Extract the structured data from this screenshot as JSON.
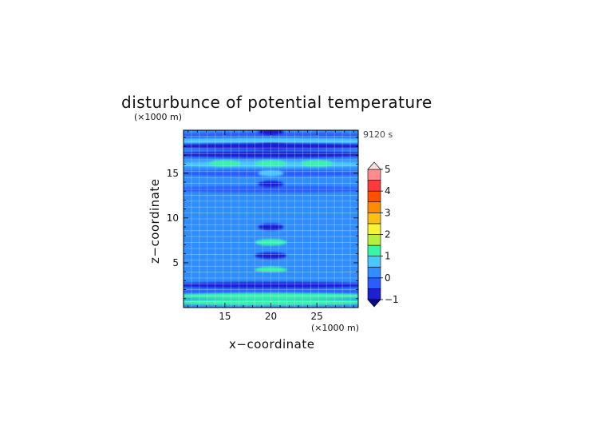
{
  "chart_data": {
    "type": "heatmap",
    "title": "disturbunce of potential temperature",
    "time_label": "9120 s",
    "xlabel": "x−coordinate",
    "ylabel": "z−coordinate",
    "x_unit": "(×1000 m)",
    "y_unit": "(×1000 m)",
    "xlim": [
      10.5,
      29.5
    ],
    "ylim": [
      0,
      19.8
    ],
    "x_ticks": [
      15,
      20,
      25
    ],
    "x_tick_labels": [
      "15",
      "20",
      "25"
    ],
    "y_ticks": [
      5,
      10,
      15
    ],
    "y_tick_labels": [
      "5",
      "10",
      "15"
    ],
    "grid": true,
    "colorbar": {
      "placement": "right",
      "levels": [
        -1,
        -0.5,
        0,
        0.5,
        1,
        1.5,
        2,
        2.5,
        3,
        3.5,
        4,
        4.5,
        5
      ],
      "tick_values": [
        -1,
        0,
        1,
        2,
        3,
        4,
        5
      ],
      "tick_labels": [
        "−1",
        "0",
        "1",
        "2",
        "3",
        "4",
        "5"
      ],
      "colors": [
        "#1e1ed2",
        "#2b5cff",
        "#2f8eff",
        "#48c8ff",
        "#39f5a8",
        "#b4f03c",
        "#f5f533",
        "#ffbe14",
        "#ff8c00",
        "#ff5000",
        "#ff3a3a",
        "#ff8c8c",
        "#ffb4b4"
      ],
      "under_color": "#0a0a8c",
      "over_color": "#f5e0e0"
    },
    "field_features": [
      {
        "kind": "band",
        "z": 19.2,
        "value": -0.1
      },
      {
        "kind": "band",
        "z": 18.6,
        "value": 0.6
      },
      {
        "kind": "band",
        "z": 18.0,
        "value": -0.6
      },
      {
        "kind": "band",
        "z": 17.1,
        "value": -0.9
      },
      {
        "kind": "band",
        "z": 16.0,
        "value": 0.5
      },
      {
        "kind": "band",
        "z": 15.0,
        "value": -0.5
      },
      {
        "kind": "band",
        "z": 14.0,
        "value": 0.2
      },
      {
        "kind": "band",
        "z": 13.2,
        "value": -0.3
      },
      {
        "kind": "blob",
        "x": 20,
        "z": 19.6,
        "value": -0.8
      },
      {
        "kind": "blob",
        "x": 20,
        "z": 18.0,
        "value": -0.95
      },
      {
        "kind": "blob",
        "x": 20,
        "z": 16.1,
        "value": 1.2
      },
      {
        "kind": "blob",
        "x": 15,
        "z": 16.1,
        "value": 1.1
      },
      {
        "kind": "blob",
        "x": 25,
        "z": 16.1,
        "value": 1.1
      },
      {
        "kind": "blob",
        "x": 20,
        "z": 15.0,
        "value": 0.7
      },
      {
        "kind": "blob",
        "x": 20,
        "z": 13.8,
        "value": -0.9
      },
      {
        "kind": "blob",
        "x": 20,
        "z": 9.0,
        "value": -0.8
      },
      {
        "kind": "blob",
        "x": 20,
        "z": 7.3,
        "value": 1.0
      },
      {
        "kind": "blob",
        "x": 20,
        "z": 5.8,
        "value": -1.0
      },
      {
        "kind": "blob",
        "x": 20,
        "z": 4.2,
        "value": 1.0
      },
      {
        "kind": "band",
        "z": 3.6,
        "value": 0.2
      },
      {
        "kind": "band",
        "z": 2.5,
        "value": -0.9
      },
      {
        "kind": "band",
        "z": 1.8,
        "value": -0.5
      },
      {
        "kind": "band",
        "z": 1.3,
        "value": 1.1
      },
      {
        "kind": "band",
        "z": 0.6,
        "value": 1.0
      }
    ]
  }
}
